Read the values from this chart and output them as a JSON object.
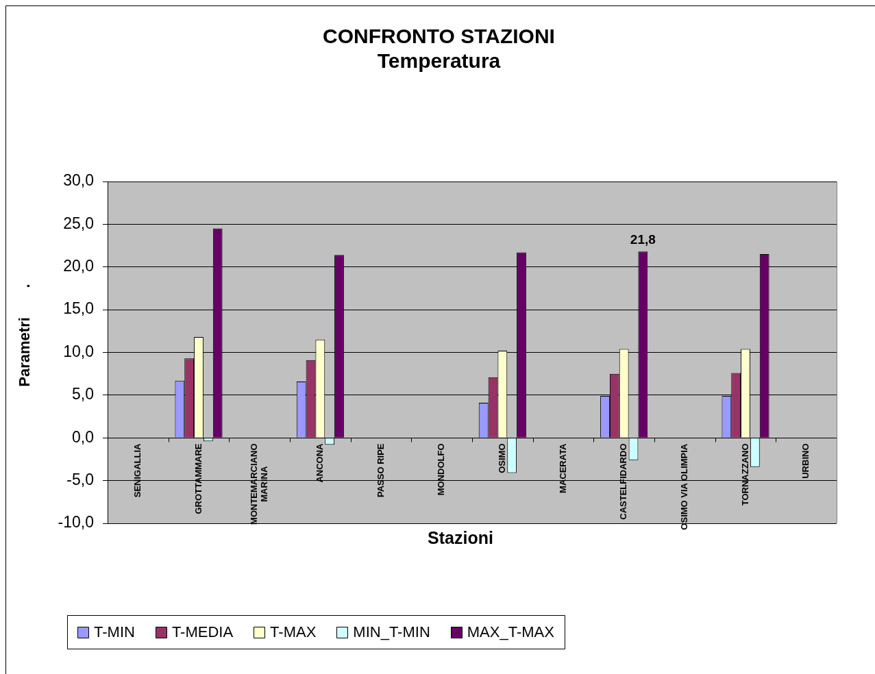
{
  "chart_data": {
    "type": "bar",
    "title": "CONFRONTO STAZIONI",
    "subtitle": "Temperatura",
    "xlabel": "Stazioni",
    "ylabel": "Parametri       .",
    "categories": [
      "SENIGALLIA",
      "GROTTAMMARE",
      "MONTEMARCIANO\nMARINA",
      "ANCONA",
      "PASSO RIPE",
      "MONDOLFO",
      "OSIMO",
      "MACERATA",
      "CASTELFIDARDO",
      "OSIMO VIA OLIMPIA",
      "TORNAZZANO",
      "URBINO"
    ],
    "series": [
      {
        "name": "T-MIN",
        "color": "#9999ff",
        "values": [
          null,
          6.7,
          null,
          6.6,
          null,
          null,
          4.1,
          null,
          4.9,
          null,
          4.9,
          null
        ]
      },
      {
        "name": "T-MEDIA",
        "color": "#993366",
        "values": [
          null,
          9.3,
          null,
          9.1,
          null,
          null,
          7.1,
          null,
          7.5,
          null,
          7.6,
          null
        ]
      },
      {
        "name": "T-MAX",
        "color": "#ffffcc",
        "values": [
          null,
          11.8,
          null,
          11.5,
          null,
          null,
          10.2,
          null,
          10.4,
          null,
          10.4,
          null
        ]
      },
      {
        "name": "MIN_T-MIN",
        "color": "#ccffff",
        "values": [
          null,
          -0.4,
          null,
          -0.8,
          null,
          null,
          -4.1,
          null,
          -2.6,
          null,
          -3.4,
          null
        ]
      },
      {
        "name": "MAX_T-MAX",
        "color": "#660066",
        "values": [
          null,
          24.5,
          null,
          21.4,
          null,
          null,
          21.7,
          null,
          21.8,
          null,
          21.5,
          null
        ],
        "value_labels": [
          null,
          null,
          null,
          null,
          null,
          null,
          null,
          null,
          "21,8",
          null,
          null,
          null
        ]
      }
    ],
    "ylim": [
      -10,
      30
    ],
    "yticks": [
      {
        "value": -10,
        "label": "-10,0"
      },
      {
        "value": -5,
        "label": "-5,0"
      },
      {
        "value": 0,
        "label": "0,0"
      },
      {
        "value": 5,
        "label": "5,0"
      },
      {
        "value": 10,
        "label": "10,0"
      },
      {
        "value": 15,
        "label": "15,0"
      },
      {
        "value": 20,
        "label": "20,0"
      },
      {
        "value": 25,
        "label": "25,0"
      },
      {
        "value": 30,
        "label": "30,0"
      }
    ],
    "grid": "y",
    "legend": "bottom left"
  }
}
